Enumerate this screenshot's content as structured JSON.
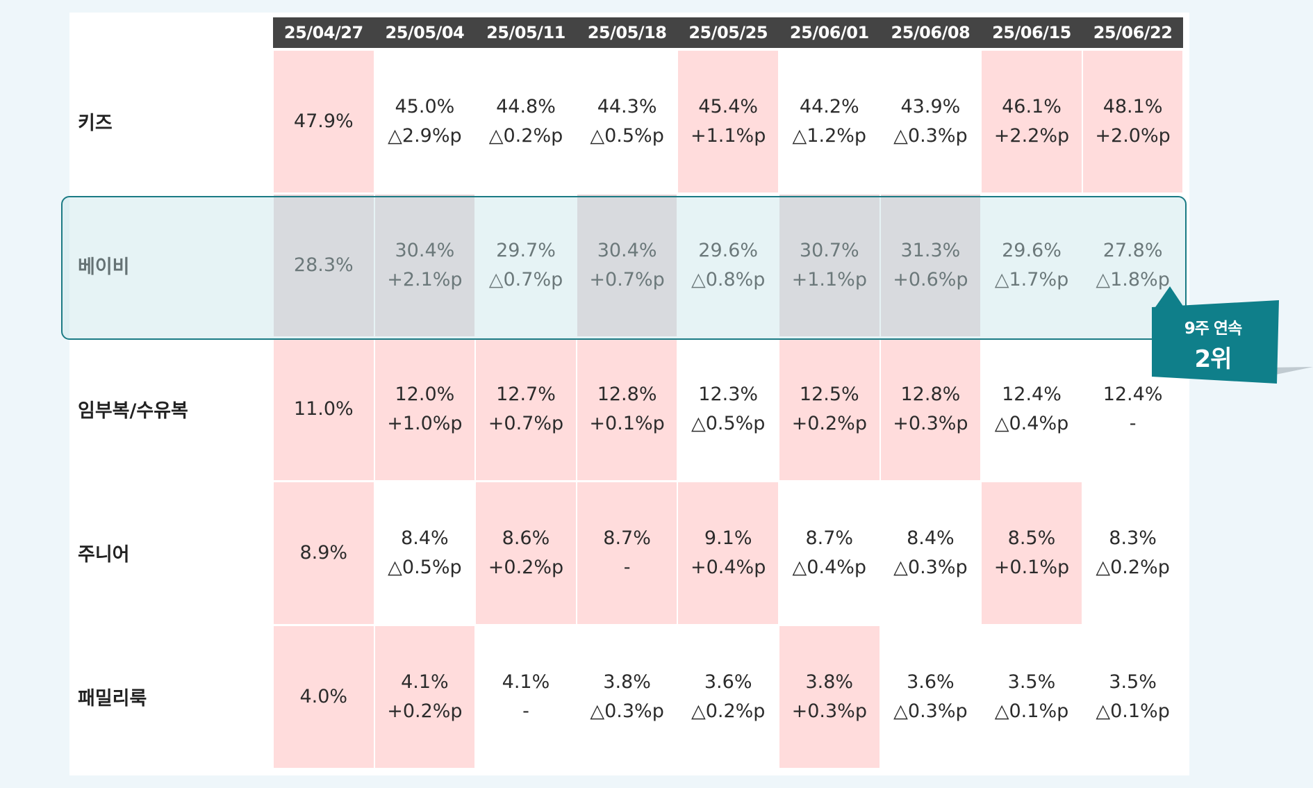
{
  "chart_data": {
    "type": "table",
    "columns": [
      "25/04/27",
      "25/05/04",
      "25/05/11",
      "25/05/18",
      "25/05/25",
      "25/06/01",
      "25/06/08",
      "25/06/15",
      "25/06/22"
    ],
    "rows": [
      {
        "label": "키즈",
        "cells": [
          {
            "value": "47.9%",
            "change": "",
            "highlight": true
          },
          {
            "value": "45.0%",
            "change": "△2.9%p",
            "highlight": false
          },
          {
            "value": "44.8%",
            "change": "△0.2%p",
            "highlight": false
          },
          {
            "value": "44.3%",
            "change": "△0.5%p",
            "highlight": false
          },
          {
            "value": "45.4%",
            "change": "+1.1%p",
            "highlight": true
          },
          {
            "value": "44.2%",
            "change": "△1.2%p",
            "highlight": false
          },
          {
            "value": "43.9%",
            "change": "△0.3%p",
            "highlight": false
          },
          {
            "value": "46.1%",
            "change": "+2.2%p",
            "highlight": true
          },
          {
            "value": "48.1%",
            "change": "+2.0%p",
            "highlight": true
          }
        ]
      },
      {
        "label": "베이비",
        "cells": [
          {
            "value": "28.3%",
            "change": "",
            "highlight": true
          },
          {
            "value": "30.4%",
            "change": "+2.1%p",
            "highlight": true
          },
          {
            "value": "29.7%",
            "change": "△0.7%p",
            "highlight": false
          },
          {
            "value": "30.4%",
            "change": "+0.7%p",
            "highlight": true
          },
          {
            "value": "29.6%",
            "change": "△0.8%p",
            "highlight": false
          },
          {
            "value": "30.7%",
            "change": "+1.1%p",
            "highlight": true
          },
          {
            "value": "31.3%",
            "change": "+0.6%p",
            "highlight": true
          },
          {
            "value": "29.6%",
            "change": "△1.7%p",
            "highlight": false
          },
          {
            "value": "27.8%",
            "change": "△1.8%p",
            "highlight": false
          }
        ]
      },
      {
        "label": "임부복/수유복",
        "cells": [
          {
            "value": "11.0%",
            "change": "",
            "highlight": true
          },
          {
            "value": "12.0%",
            "change": "+1.0%p",
            "highlight": true
          },
          {
            "value": "12.7%",
            "change": "+0.7%p",
            "highlight": true
          },
          {
            "value": "12.8%",
            "change": "+0.1%p",
            "highlight": true
          },
          {
            "value": "12.3%",
            "change": "△0.5%p",
            "highlight": false
          },
          {
            "value": "12.5%",
            "change": "+0.2%p",
            "highlight": true
          },
          {
            "value": "12.8%",
            "change": "+0.3%p",
            "highlight": true
          },
          {
            "value": "12.4%",
            "change": "△0.4%p",
            "highlight": false
          },
          {
            "value": "12.4%",
            "change": "-",
            "highlight": false
          }
        ]
      },
      {
        "label": "주니어",
        "cells": [
          {
            "value": "8.9%",
            "change": "",
            "highlight": true
          },
          {
            "value": "8.4%",
            "change": "△0.5%p",
            "highlight": false
          },
          {
            "value": "8.6%",
            "change": "+0.2%p",
            "highlight": true
          },
          {
            "value": "8.7%",
            "change": "-",
            "highlight": true
          },
          {
            "value": "9.1%",
            "change": "+0.4%p",
            "highlight": true
          },
          {
            "value": "8.7%",
            "change": "△0.4%p",
            "highlight": false
          },
          {
            "value": "8.4%",
            "change": "△0.3%p",
            "highlight": false
          },
          {
            "value": "8.5%",
            "change": "+0.1%p",
            "highlight": true
          },
          {
            "value": "8.3%",
            "change": "△0.2%p",
            "highlight": false
          }
        ]
      },
      {
        "label": "패밀리룩",
        "cells": [
          {
            "value": "4.0%",
            "change": "",
            "highlight": true
          },
          {
            "value": "4.1%",
            "change": "+0.2%p",
            "highlight": true
          },
          {
            "value": "4.1%",
            "change": "-",
            "highlight": false
          },
          {
            "value": "3.8%",
            "change": "△0.3%p",
            "highlight": false
          },
          {
            "value": "3.6%",
            "change": "△0.2%p",
            "highlight": false
          },
          {
            "value": "3.8%",
            "change": "+0.3%p",
            "highlight": true
          },
          {
            "value": "3.6%",
            "change": "△0.3%p",
            "highlight": false
          },
          {
            "value": "3.5%",
            "change": "△0.1%p",
            "highlight": false
          },
          {
            "value": "3.5%",
            "change": "△0.1%p",
            "highlight": false
          }
        ]
      }
    ],
    "highlighted_row": "베이비"
  },
  "callout": {
    "line1": "9주 연속",
    "line2": "2위"
  },
  "colors": {
    "header_bg": "#444444",
    "cell_highlight": "#ffdcdc",
    "row_highlight_border": "#1a7a84",
    "callout": "#0f7f8a"
  }
}
